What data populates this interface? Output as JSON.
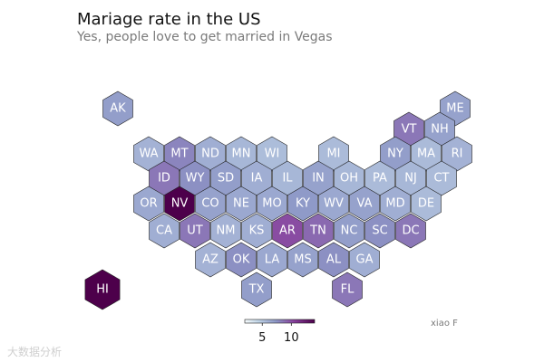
{
  "title": "Mariage rate in the US",
  "subtitle": "Yes, people love to get married in Vegas",
  "credit": "xiao F",
  "watermark": "大数据分析",
  "chart_data": {
    "type": "hexbin-map",
    "colormap": "BuPu",
    "color_range": [
      2,
      14
    ],
    "colorbar_ticks": [
      5,
      10
    ],
    "states": [
      {
        "abbr": "AK",
        "col": 0,
        "row": 0,
        "value": 7.0
      },
      {
        "abbr": "ME",
        "col": 11,
        "row": 0,
        "value": 6.8
      },
      {
        "abbr": "VT",
        "col": 10,
        "row": 1,
        "value": 8.5
      },
      {
        "abbr": "NH",
        "col": 11,
        "row": 1,
        "value": 6.8
      },
      {
        "abbr": "WA",
        "col": 1,
        "row": 2,
        "value": 6.0
      },
      {
        "abbr": "MT",
        "col": 2,
        "row": 2,
        "value": 8.0
      },
      {
        "abbr": "ND",
        "col": 3,
        "row": 2,
        "value": 6.2
      },
      {
        "abbr": "MN",
        "col": 4,
        "row": 2,
        "value": 5.8
      },
      {
        "abbr": "WI",
        "col": 5,
        "row": 2,
        "value": 5.5
      },
      {
        "abbr": "MI",
        "col": 7,
        "row": 2,
        "value": 5.6
      },
      {
        "abbr": "NY",
        "col": 9,
        "row": 2,
        "value": 7.0
      },
      {
        "abbr": "MA",
        "col": 10,
        "row": 2,
        "value": 5.6
      },
      {
        "abbr": "RI",
        "col": 11,
        "row": 2,
        "value": 6.0
      },
      {
        "abbr": "ID",
        "col": 1,
        "row": 3,
        "value": 8.5
      },
      {
        "abbr": "WY",
        "col": 2,
        "row": 3,
        "value": 7.6
      },
      {
        "abbr": "SD",
        "col": 3,
        "row": 3,
        "value": 7.0
      },
      {
        "abbr": "IA",
        "col": 4,
        "row": 3,
        "value": 6.2
      },
      {
        "abbr": "IL",
        "col": 5,
        "row": 3,
        "value": 5.8
      },
      {
        "abbr": "IN",
        "col": 6,
        "row": 3,
        "value": 6.8
      },
      {
        "abbr": "OH",
        "col": 7,
        "row": 3,
        "value": 5.8
      },
      {
        "abbr": "PA",
        "col": 8,
        "row": 3,
        "value": 5.6
      },
      {
        "abbr": "NJ",
        "col": 9,
        "row": 3,
        "value": 5.8
      },
      {
        "abbr": "CT",
        "col": 10,
        "row": 3,
        "value": 5.6
      },
      {
        "abbr": "OR",
        "col": 0,
        "row": 4,
        "value": 6.5
      },
      {
        "abbr": "NV",
        "col": 1,
        "row": 4,
        "value": 30.0
      },
      {
        "abbr": "CO",
        "col": 2,
        "row": 4,
        "value": 6.8
      },
      {
        "abbr": "NE",
        "col": 3,
        "row": 4,
        "value": 6.5
      },
      {
        "abbr": "MO",
        "col": 4,
        "row": 4,
        "value": 6.5
      },
      {
        "abbr": "KY",
        "col": 5,
        "row": 4,
        "value": 7.2
      },
      {
        "abbr": "WV",
        "col": 6,
        "row": 4,
        "value": 6.5
      },
      {
        "abbr": "VA",
        "col": 7,
        "row": 4,
        "value": 6.8
      },
      {
        "abbr": "MD",
        "col": 8,
        "row": 4,
        "value": 6.2
      },
      {
        "abbr": "DE",
        "col": 9,
        "row": 4,
        "value": 5.6
      },
      {
        "abbr": "CA",
        "col": 1,
        "row": 5,
        "value": 6.2
      },
      {
        "abbr": "UT",
        "col": 2,
        "row": 5,
        "value": 8.5
      },
      {
        "abbr": "NM",
        "col": 3,
        "row": 5,
        "value": 6.0
      },
      {
        "abbr": "KS",
        "col": 4,
        "row": 5,
        "value": 6.2
      },
      {
        "abbr": "AR",
        "col": 5,
        "row": 5,
        "value": 10.0
      },
      {
        "abbr": "TN",
        "col": 6,
        "row": 5,
        "value": 9.0
      },
      {
        "abbr": "NC",
        "col": 7,
        "row": 5,
        "value": 7.0
      },
      {
        "abbr": "SC",
        "col": 8,
        "row": 5,
        "value": 7.6
      },
      {
        "abbr": "DC",
        "col": 9,
        "row": 5,
        "value": 8.5
      },
      {
        "abbr": "AZ",
        "col": 2,
        "row": 6,
        "value": 6.0
      },
      {
        "abbr": "OK",
        "col": 3,
        "row": 6,
        "value": 7.6
      },
      {
        "abbr": "LA",
        "col": 4,
        "row": 6,
        "value": 6.5
      },
      {
        "abbr": "MS",
        "col": 5,
        "row": 6,
        "value": 6.8
      },
      {
        "abbr": "AL",
        "col": 6,
        "row": 6,
        "value": 7.6
      },
      {
        "abbr": "GA",
        "col": 7,
        "row": 6,
        "value": 6.2
      },
      {
        "abbr": "HI",
        "col": 0,
        "row": 7,
        "value": 16.0
      },
      {
        "abbr": "TX",
        "col": 4,
        "row": 7,
        "value": 7.0
      },
      {
        "abbr": "FL",
        "col": 7,
        "row": 7,
        "value": 8.5
      }
    ]
  }
}
